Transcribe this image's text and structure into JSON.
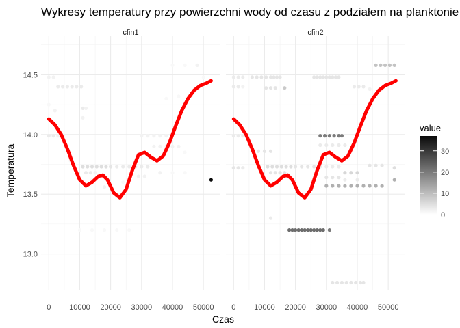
{
  "chart_data": {
    "type": "scatter",
    "title": "Wykresy temperatury przy powierzchni wody od czasu z podziałem na planktonie",
    "xlabel": "Czas",
    "ylabel": "Temperatura",
    "xlim": [
      -2500,
      55500
    ],
    "ylim": [
      12.7,
      14.8
    ],
    "x_ticks": [
      0,
      10000,
      20000,
      30000,
      40000,
      50000
    ],
    "x_tick_labels": [
      "0",
      "10000",
      "20000",
      "30000",
      "40000",
      "50000"
    ],
    "y_ticks": [
      13.0,
      13.5,
      14.0,
      14.5
    ],
    "y_tick_labels": [
      "13.0",
      "13.5",
      "14.0",
      "14.5"
    ],
    "grid": true,
    "legend": {
      "title": "value",
      "position": "right",
      "range": [
        0,
        37
      ],
      "ticks": [
        0,
        10,
        20,
        30
      ],
      "tick_labels": [
        "0",
        "10",
        "20",
        "30"
      ],
      "low_color": "#ffffff",
      "high_color": "#0a0a0a"
    },
    "trend_color": "#ff0000",
    "trend_curve": [
      [
        0,
        14.13
      ],
      [
        2000,
        14.08
      ],
      [
        4000,
        14.0
      ],
      [
        6000,
        13.88
      ],
      [
        8000,
        13.74
      ],
      [
        10000,
        13.62
      ],
      [
        12000,
        13.57
      ],
      [
        14000,
        13.6
      ],
      [
        16000,
        13.65
      ],
      [
        17500,
        13.66
      ],
      [
        19000,
        13.62
      ],
      [
        21000,
        13.51
      ],
      [
        23000,
        13.47
      ],
      [
        25000,
        13.54
      ],
      [
        27000,
        13.7
      ],
      [
        29000,
        13.83
      ],
      [
        31000,
        13.85
      ],
      [
        33000,
        13.81
      ],
      [
        35000,
        13.78
      ],
      [
        37000,
        13.82
      ],
      [
        39000,
        13.93
      ],
      [
        41000,
        14.07
      ],
      [
        43000,
        14.2
      ],
      [
        45000,
        14.3
      ],
      [
        47000,
        14.37
      ],
      [
        49000,
        14.41
      ],
      [
        51000,
        14.43
      ],
      [
        52500,
        14.45
      ]
    ],
    "panels": [
      {
        "strip": "cfin1",
        "points": [
          [
            0,
            14.48,
            2
          ],
          [
            1500,
            14.48,
            2
          ],
          [
            3000,
            14.4,
            3
          ],
          [
            4500,
            14.4,
            3
          ],
          [
            6000,
            14.4,
            3
          ],
          [
            7500,
            14.4,
            3
          ],
          [
            9000,
            14.4,
            3
          ],
          [
            10500,
            14.4,
            3
          ],
          [
            0,
            14.25,
            1
          ],
          [
            2000,
            14.2,
            2
          ],
          [
            11000,
            14.22,
            3
          ],
          [
            12000,
            14.22,
            2
          ],
          [
            11000,
            14.14,
            2
          ],
          [
            0,
            13.99,
            3
          ],
          [
            1500,
            13.99,
            3
          ],
          [
            3000,
            13.99,
            2
          ],
          [
            7000,
            13.78,
            1
          ],
          [
            8000,
            13.74,
            2
          ],
          [
            11000,
            13.73,
            5
          ],
          [
            12500,
            13.73,
            5
          ],
          [
            14000,
            13.73,
            5
          ],
          [
            15500,
            13.73,
            5
          ],
          [
            17000,
            13.73,
            5
          ],
          [
            18500,
            13.73,
            5
          ],
          [
            20000,
            13.73,
            4
          ],
          [
            22000,
            13.73,
            3
          ],
          [
            24000,
            13.73,
            3
          ],
          [
            26000,
            13.73,
            3
          ],
          [
            28000,
            13.73,
            3
          ],
          [
            30000,
            13.73,
            3
          ],
          [
            32000,
            13.73,
            3
          ],
          [
            12000,
            13.68,
            3
          ],
          [
            13500,
            13.68,
            3
          ],
          [
            15000,
            13.68,
            2
          ],
          [
            14000,
            13.62,
            1
          ],
          [
            18000,
            13.56,
            2
          ],
          [
            22000,
            13.48,
            2
          ],
          [
            29000,
            13.65,
            2
          ],
          [
            31000,
            13.65,
            2
          ],
          [
            30000,
            13.99,
            2
          ],
          [
            32000,
            13.99,
            2
          ],
          [
            34000,
            13.99,
            2
          ],
          [
            36000,
            13.99,
            2
          ],
          [
            38000,
            13.99,
            2
          ],
          [
            34000,
            13.9,
            2
          ],
          [
            36000,
            13.9,
            2
          ],
          [
            38000,
            13.9,
            2
          ],
          [
            40000,
            13.9,
            2
          ],
          [
            42000,
            13.9,
            2
          ],
          [
            44000,
            13.85,
            1
          ],
          [
            38000,
            14.3,
            1
          ],
          [
            42000,
            14.32,
            1
          ],
          [
            46000,
            14.32,
            1
          ],
          [
            40000,
            14.58,
            1
          ],
          [
            44000,
            14.58,
            1
          ],
          [
            48000,
            14.58,
            2
          ],
          [
            50000,
            14.48,
            1
          ],
          [
            36000,
            13.68,
            2
          ],
          [
            40000,
            13.68,
            1
          ],
          [
            44000,
            13.68,
            1
          ],
          [
            10000,
            13.2,
            1
          ],
          [
            14000,
            13.2,
            1
          ],
          [
            18000,
            13.2,
            1
          ],
          [
            22000,
            13.2,
            1
          ],
          [
            26000,
            13.2,
            1
          ],
          [
            24000,
            13.6,
            1
          ],
          [
            52500,
            13.62,
            37
          ]
        ]
      },
      {
        "strip": "cfin2",
        "points": [
          [
            0,
            14.48,
            3
          ],
          [
            1500,
            14.48,
            3
          ],
          [
            3000,
            14.48,
            3
          ],
          [
            6000,
            14.48,
            4
          ],
          [
            7500,
            14.48,
            4
          ],
          [
            9000,
            14.48,
            4
          ],
          [
            10500,
            14.48,
            4
          ],
          [
            12000,
            14.48,
            4
          ],
          [
            13000,
            14.48,
            4
          ],
          [
            14000,
            14.48,
            4
          ],
          [
            15000,
            14.48,
            4
          ],
          [
            26000,
            14.48,
            4
          ],
          [
            27000,
            14.48,
            4
          ],
          [
            28000,
            14.48,
            4
          ],
          [
            29000,
            14.48,
            4
          ],
          [
            30000,
            14.48,
            4
          ],
          [
            31000,
            14.48,
            4
          ],
          [
            32000,
            14.48,
            4
          ],
          [
            33000,
            14.48,
            4
          ],
          [
            34000,
            14.48,
            4
          ],
          [
            0,
            14.4,
            3
          ],
          [
            1500,
            14.4,
            3
          ],
          [
            3000,
            14.4,
            2
          ],
          [
            10500,
            14.39,
            4
          ],
          [
            12000,
            14.39,
            4
          ],
          [
            13500,
            14.39,
            4
          ],
          [
            16500,
            14.39,
            8
          ],
          [
            39000,
            14.4,
            3
          ],
          [
            40500,
            14.4,
            3
          ],
          [
            42000,
            14.4,
            3
          ],
          [
            44000,
            14.38,
            2
          ],
          [
            48000,
            14.38,
            2
          ],
          [
            46000,
            14.58,
            9
          ],
          [
            47500,
            14.58,
            9
          ],
          [
            49000,
            14.58,
            9
          ],
          [
            50500,
            14.58,
            9
          ],
          [
            52000,
            14.58,
            9
          ],
          [
            0,
            13.99,
            3
          ],
          [
            1500,
            13.99,
            3
          ],
          [
            3000,
            13.99,
            3
          ],
          [
            28000,
            13.99,
            20
          ],
          [
            29500,
            13.99,
            20
          ],
          [
            31000,
            13.99,
            20
          ],
          [
            32500,
            13.99,
            20
          ],
          [
            34000,
            13.99,
            20
          ],
          [
            35000,
            13.99,
            20
          ],
          [
            28000,
            13.91,
            3
          ],
          [
            30000,
            13.91,
            3
          ],
          [
            32000,
            13.91,
            3
          ],
          [
            34000,
            13.91,
            3
          ],
          [
            36000,
            13.91,
            3
          ],
          [
            0,
            13.72,
            4
          ],
          [
            1500,
            13.72,
            4
          ],
          [
            3000,
            13.72,
            3
          ],
          [
            11000,
            13.73,
            5
          ],
          [
            12500,
            13.73,
            5
          ],
          [
            14000,
            13.73,
            5
          ],
          [
            15500,
            13.73,
            5
          ],
          [
            17000,
            13.73,
            5
          ],
          [
            18500,
            13.73,
            5
          ],
          [
            20000,
            13.73,
            4
          ],
          [
            22000,
            13.73,
            4
          ],
          [
            24000,
            13.73,
            4
          ],
          [
            26000,
            13.73,
            4
          ],
          [
            28000,
            13.73,
            3
          ],
          [
            30000,
            13.73,
            3
          ],
          [
            32000,
            13.73,
            3
          ],
          [
            34000,
            13.73,
            3
          ],
          [
            12000,
            13.68,
            4
          ],
          [
            13500,
            13.68,
            4
          ],
          [
            15000,
            13.68,
            4
          ],
          [
            16500,
            13.68,
            4
          ],
          [
            36000,
            13.68,
            6
          ],
          [
            38000,
            13.68,
            6
          ],
          [
            40000,
            13.68,
            6
          ],
          [
            44000,
            13.74,
            4
          ],
          [
            46000,
            13.74,
            4
          ],
          [
            48000,
            13.74,
            4
          ],
          [
            30000,
            13.64,
            4
          ],
          [
            32000,
            13.64,
            4
          ],
          [
            34000,
            13.64,
            4
          ],
          [
            30000,
            13.57,
            12
          ],
          [
            32000,
            13.57,
            12
          ],
          [
            34000,
            13.57,
            12
          ],
          [
            36000,
            13.57,
            12
          ],
          [
            38000,
            13.57,
            12
          ],
          [
            40000,
            13.57,
            12
          ],
          [
            42000,
            13.57,
            12
          ],
          [
            44000,
            13.57,
            12
          ],
          [
            46000,
            13.57,
            12
          ],
          [
            48000,
            13.57,
            12
          ],
          [
            52000,
            13.62,
            12
          ],
          [
            52000,
            13.72,
            5
          ],
          [
            8000,
            13.86,
            4
          ],
          [
            10000,
            13.86,
            4
          ],
          [
            12000,
            13.86,
            4
          ],
          [
            12000,
            13.3,
            3
          ],
          [
            18000,
            13.2,
            22
          ],
          [
            19000,
            13.2,
            22
          ],
          [
            20000,
            13.2,
            22
          ],
          [
            21000,
            13.2,
            22
          ],
          [
            22000,
            13.2,
            22
          ],
          [
            23000,
            13.2,
            22
          ],
          [
            24000,
            13.2,
            22
          ],
          [
            25000,
            13.2,
            22
          ],
          [
            26000,
            13.2,
            22
          ],
          [
            27000,
            13.2,
            22
          ],
          [
            28000,
            13.2,
            22
          ],
          [
            29000,
            13.2,
            22
          ],
          [
            31000,
            13.2,
            20
          ],
          [
            32000,
            12.76,
            4
          ],
          [
            33500,
            12.76,
            4
          ],
          [
            35000,
            12.76,
            4
          ],
          [
            36500,
            12.76,
            4
          ],
          [
            38000,
            12.76,
            4
          ],
          [
            39500,
            12.76,
            4
          ],
          [
            41000,
            12.76,
            4
          ],
          [
            42000,
            12.76,
            4
          ],
          [
            36000,
            13.62,
            3
          ],
          [
            40000,
            13.62,
            3
          ]
        ]
      }
    ]
  }
}
